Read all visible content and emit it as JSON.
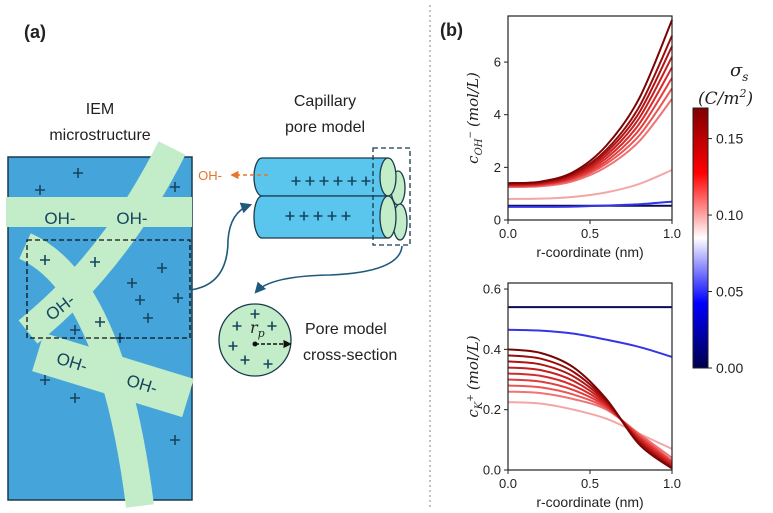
{
  "panel_a": {
    "label": "(a)",
    "iem_title": [
      "IEM",
      "microstructure"
    ],
    "capillary_title": [
      "Capillary",
      "pore model"
    ],
    "section_title": [
      "Pore model",
      "cross-section"
    ],
    "radius_symbol": "r",
    "radius_sub": "p",
    "ion_labels": [
      "OH-",
      "OH-",
      "OH-",
      "OH-",
      "OH-"
    ],
    "pore_ion_label": "OH-"
  },
  "panel_b": {
    "label": "(b)"
  },
  "colorbar": {
    "symbol": "σ",
    "symbol_sub": "s",
    "unit_open": "(C/m",
    "unit_sup": "2",
    "unit_close": ")",
    "lim": [
      0,
      0.17
    ],
    "ticks": [
      {
        "value": 0,
        "label": "0.00"
      },
      {
        "value": 0.05,
        "label": "0.05"
      },
      {
        "value": 0.1,
        "label": "0.10"
      },
      {
        "value": 0.15,
        "label": "0.15"
      }
    ],
    "colors": [
      "#00004c",
      "#0000ff",
      "#ffffff",
      "#ff0000",
      "#800000"
    ]
  },
  "chart_data": [
    {
      "type": "line",
      "ylabel": {
        "base": "c",
        "sub": "OH",
        "sup": "−",
        "unit": "(mol/L)"
      },
      "xlabel": "r-coordinate (nm)",
      "x": [
        0,
        0.2,
        0.4,
        0.6,
        0.8,
        1.0
      ],
      "xlim": [
        0,
        1
      ],
      "ylim": [
        0,
        7.75
      ],
      "xticks": [
        {
          "value": 0,
          "label": "0.0"
        },
        {
          "value": 0.5,
          "label": "0.5"
        },
        {
          "value": 1,
          "label": "1.0"
        }
      ],
      "yticks": [
        0,
        2,
        4,
        6
      ],
      "series": [
        {
          "color": "#0a0a55",
          "values": [
            0.54,
            0.54,
            0.54,
            0.54,
            0.54,
            0.54
          ]
        },
        {
          "color": "#3535e6",
          "values": [
            0.5,
            0.5,
            0.51,
            0.55,
            0.6,
            0.7
          ]
        },
        {
          "color": "#f4a6a6",
          "values": [
            0.8,
            0.81,
            0.88,
            1.05,
            1.37,
            1.9
          ]
        },
        {
          "color": "#f07272",
          "values": [
            1.25,
            1.28,
            1.48,
            2.02,
            2.99,
            4.6
          ]
        },
        {
          "color": "#ea5656",
          "values": [
            1.28,
            1.32,
            1.54,
            2.14,
            3.21,
            5.0
          ]
        },
        {
          "color": "#e23c3c",
          "values": [
            1.3,
            1.34,
            1.59,
            2.24,
            3.43,
            5.4
          ]
        },
        {
          "color": "#d62a2a",
          "values": [
            1.32,
            1.36,
            1.63,
            2.35,
            3.65,
            5.8
          ]
        },
        {
          "color": "#c41e1e",
          "values": [
            1.34,
            1.39,
            1.68,
            2.46,
            3.87,
            6.2
          ]
        },
        {
          "color": "#b01414",
          "values": [
            1.36,
            1.41,
            1.73,
            2.57,
            4.08,
            6.6
          ]
        },
        {
          "color": "#980c0c",
          "values": [
            1.38,
            1.44,
            1.77,
            2.67,
            4.3,
            7.0
          ]
        },
        {
          "color": "#7a0404",
          "values": [
            1.4,
            1.46,
            1.83,
            2.83,
            4.62,
            7.6
          ]
        }
      ]
    },
    {
      "type": "line",
      "ylabel": {
        "base": "c",
        "sub": "K",
        "sup": "+",
        "unit": "(mol/L)"
      },
      "xlabel": "r-coordinate (nm)",
      "x": [
        0,
        0.2,
        0.4,
        0.6,
        0.8,
        1.0
      ],
      "xlim": [
        0,
        1
      ],
      "ylim": [
        0,
        0.62
      ],
      "xticks": [
        {
          "value": 0,
          "label": "0.0"
        },
        {
          "value": 0.5,
          "label": "0.5"
        },
        {
          "value": 1,
          "label": "1.0"
        }
      ],
      "yticks": [
        {
          "value": 0,
          "label": "0.0"
        },
        0.2,
        0.4,
        0.6
      ],
      "series": [
        {
          "color": "#0a0a55",
          "values": [
            0.54,
            0.54,
            0.54,
            0.54,
            0.54,
            0.54
          ]
        },
        {
          "color": "#3535e6",
          "values": [
            0.465,
            0.462,
            0.452,
            0.432,
            0.408,
            0.375
          ]
        },
        {
          "color": "#f4a6a6",
          "values": [
            0.225,
            0.22,
            0.2,
            0.17,
            0.12,
            0.07
          ]
        },
        {
          "color": "#f07272",
          "values": [
            0.26,
            0.255,
            0.235,
            0.2,
            0.12,
            0.04
          ]
        },
        {
          "color": "#ea5656",
          "values": [
            0.28,
            0.274,
            0.25,
            0.205,
            0.115,
            0.03
          ]
        },
        {
          "color": "#e23c3c",
          "values": [
            0.3,
            0.293,
            0.265,
            0.21,
            0.11,
            0.025
          ]
        },
        {
          "color": "#d62a2a",
          "values": [
            0.32,
            0.312,
            0.28,
            0.215,
            0.105,
            0.02
          ]
        },
        {
          "color": "#c41e1e",
          "values": [
            0.34,
            0.331,
            0.295,
            0.22,
            0.1,
            0.015
          ]
        },
        {
          "color": "#b01414",
          "values": [
            0.36,
            0.35,
            0.31,
            0.225,
            0.095,
            0.01
          ]
        },
        {
          "color": "#980c0c",
          "values": [
            0.38,
            0.369,
            0.325,
            0.23,
            0.09,
            0.008
          ]
        },
        {
          "color": "#7a0404",
          "values": [
            0.4,
            0.388,
            0.34,
            0.235,
            0.085,
            0.005
          ]
        }
      ]
    }
  ]
}
